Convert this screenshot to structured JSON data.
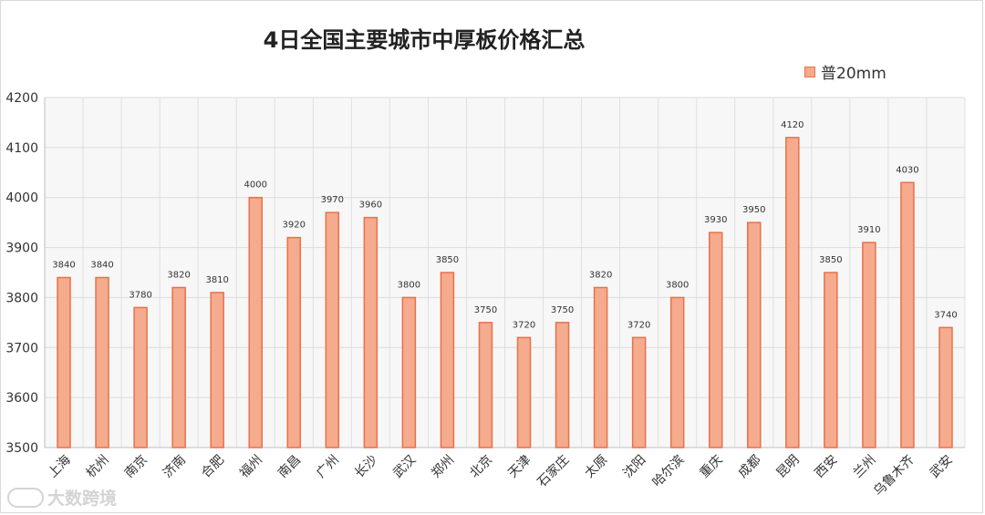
{
  "chart_data": {
    "type": "bar",
    "title": "4日全国主要城市中厚板价格汇总",
    "series": [
      {
        "name": "普20mm",
        "values": [
          3840,
          3840,
          3780,
          3820,
          3810,
          4000,
          3920,
          3970,
          3960,
          3800,
          3850,
          3750,
          3720,
          3750,
          3820,
          3720,
          3800,
          3930,
          3950,
          4120,
          3850,
          3910,
          4030,
          3740
        ]
      }
    ],
    "categories": [
      "上海",
      "杭州",
      "南京",
      "济南",
      "合肥",
      "福州",
      "南昌",
      "广州",
      "长沙",
      "武汉",
      "郑州",
      "北京",
      "天津",
      "石家庄",
      "太原",
      "沈阳",
      "哈尔滨",
      "重庆",
      "成都",
      "昆明",
      "西安",
      "兰州",
      "乌鲁木齐",
      "武安"
    ],
    "ylim": [
      3500,
      4200
    ],
    "yticks": [
      3500,
      3600,
      3700,
      3800,
      3900,
      4000,
      4100,
      4200
    ],
    "grid": true,
    "legend_position": "top-right",
    "bar_fill": "#f5ab8d",
    "bar_stroke": "#e8714a"
  },
  "watermark": {
    "text": "大数跨境"
  }
}
